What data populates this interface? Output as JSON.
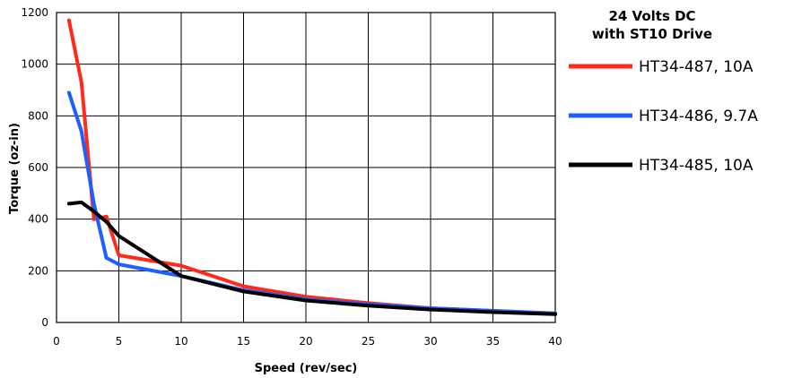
{
  "chart_data": {
    "type": "line",
    "title_lines": [
      "24 Volts DC",
      "with ST10 Drive"
    ],
    "xlabel": "Speed (rev/sec)",
    "ylabel": "Torque (oz-in)",
    "xlim": [
      0,
      40
    ],
    "ylim": [
      0,
      1200
    ],
    "x_ticks": [
      0,
      5,
      10,
      15,
      20,
      25,
      30,
      35,
      40
    ],
    "y_ticks": [
      0,
      200,
      400,
      600,
      800,
      1000,
      1200
    ],
    "grid": true,
    "legend_position": "right",
    "series": [
      {
        "name": "HT34-487, 10A",
        "color": "#ff2a1a",
        "x": [
          1,
          2,
          3,
          4,
          5,
          10,
          15,
          20,
          25,
          30,
          35,
          40
        ],
        "y": [
          1170,
          930,
          400,
          410,
          260,
          220,
          140,
          100,
          75,
          55,
          45,
          35
        ]
      },
      {
        "name": "HT34-486, 9.7A",
        "color": "#1f5fff",
        "x": [
          1,
          2,
          3,
          4,
          5,
          10,
          15,
          20,
          25,
          30,
          35,
          40
        ],
        "y": [
          890,
          740,
          460,
          250,
          225,
          180,
          125,
          90,
          70,
          55,
          45,
          35
        ]
      },
      {
        "name": "HT34-485, 10A",
        "color": "#000000",
        "x": [
          1,
          2,
          3,
          4,
          5,
          10,
          15,
          20,
          25,
          30,
          35,
          40
        ],
        "y": [
          460,
          465,
          430,
          390,
          335,
          180,
          120,
          85,
          65,
          50,
          40,
          32
        ]
      }
    ]
  }
}
